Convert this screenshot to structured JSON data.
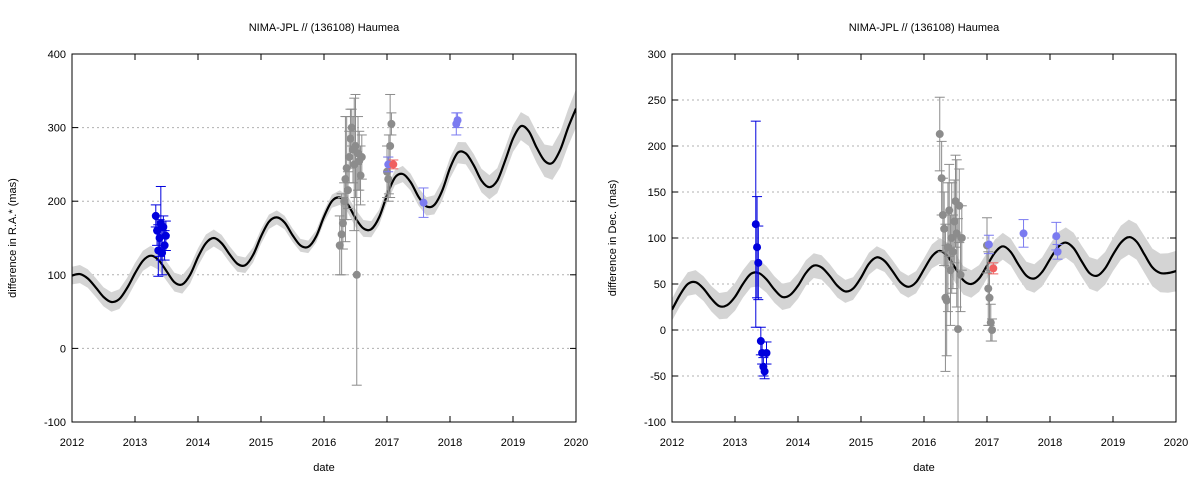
{
  "chart_data": [
    {
      "type": "line",
      "title": "NIMA-JPL // (136108) Haumea",
      "xlabel": "date",
      "ylabel": "difference in R.A.* (mas)",
      "xlim": [
        2012,
        2020
      ],
      "ylim": [
        -100,
        400
      ],
      "xticks": [
        "2012",
        "2013",
        "2014",
        "2015",
        "2016",
        "2017",
        "2018",
        "2019",
        "2020"
      ],
      "yticks": [
        "-100",
        "0",
        "100",
        "200",
        "300",
        "400"
      ],
      "grid": "dotted horizontal",
      "colors": {
        "model": "#000000",
        "band": "#d4d4d4",
        "blue": "#0000dd",
        "gray": "#8c8c8c",
        "light_blue": "#7b7bf0",
        "red": "#f06060"
      },
      "model": [
        [
          2012.0,
          99
        ],
        [
          2012.125,
          101
        ],
        [
          2012.25,
          95
        ],
        [
          2012.375,
          83
        ],
        [
          2012.5,
          70
        ],
        [
          2012.625,
          63
        ],
        [
          2012.75,
          67
        ],
        [
          2012.875,
          82
        ],
        [
          2013.0,
          102
        ],
        [
          2013.125,
          119
        ],
        [
          2013.25,
          126
        ],
        [
          2013.375,
          120
        ],
        [
          2013.5,
          105
        ],
        [
          2013.625,
          90
        ],
        [
          2013.75,
          87
        ],
        [
          2013.875,
          100
        ],
        [
          2014.0,
          124
        ],
        [
          2014.125,
          143
        ],
        [
          2014.25,
          150
        ],
        [
          2014.375,
          143
        ],
        [
          2014.5,
          128
        ],
        [
          2014.625,
          115
        ],
        [
          2014.75,
          113
        ],
        [
          2014.875,
          127
        ],
        [
          2015.0,
          152
        ],
        [
          2015.125,
          172
        ],
        [
          2015.25,
          178
        ],
        [
          2015.375,
          171
        ],
        [
          2015.5,
          154
        ],
        [
          2015.625,
          140
        ],
        [
          2015.75,
          138
        ],
        [
          2015.875,
          152
        ],
        [
          2016.0,
          179
        ],
        [
          2016.125,
          200
        ],
        [
          2016.25,
          205
        ],
        [
          2016.375,
          196
        ],
        [
          2016.5,
          177
        ],
        [
          2016.625,
          163
        ],
        [
          2016.75,
          162
        ],
        [
          2016.875,
          178
        ],
        [
          2017.0,
          208
        ],
        [
          2017.125,
          232
        ],
        [
          2017.25,
          237
        ],
        [
          2017.375,
          226
        ],
        [
          2017.5,
          206
        ],
        [
          2017.625,
          193
        ],
        [
          2017.75,
          195
        ],
        [
          2017.875,
          214
        ],
        [
          2018.0,
          245
        ],
        [
          2018.125,
          266
        ],
        [
          2018.25,
          265
        ],
        [
          2018.375,
          249
        ],
        [
          2018.5,
          228
        ],
        [
          2018.625,
          219
        ],
        [
          2018.75,
          228
        ],
        [
          2018.875,
          255
        ],
        [
          2019.0,
          285
        ],
        [
          2019.125,
          302
        ],
        [
          2019.25,
          295
        ],
        [
          2019.375,
          273
        ],
        [
          2019.5,
          255
        ],
        [
          2019.625,
          252
        ],
        [
          2019.75,
          270
        ],
        [
          2019.875,
          300
        ],
        [
          2020.0,
          326
        ]
      ],
      "band_halfwidth": [
        [
          2012,
          12
        ],
        [
          2013,
          14
        ],
        [
          2014,
          12
        ],
        [
          2015,
          10
        ],
        [
          2016,
          8
        ],
        [
          2016.5,
          12
        ],
        [
          2017,
          10
        ],
        [
          2018,
          14
        ],
        [
          2019,
          18
        ],
        [
          2020,
          26
        ]
      ],
      "points": [
        {
          "group": "blue",
          "values": [
            [
              2013.33,
              180,
              15
            ],
            [
              2013.35,
              160,
              20
            ],
            [
              2013.37,
              133,
              35
            ],
            [
              2013.39,
              150,
              25
            ],
            [
              2013.41,
              170,
              50
            ],
            [
              2013.43,
              130,
              30
            ],
            [
              2013.45,
              165,
              15
            ],
            [
              2013.47,
              140,
              20
            ],
            [
              2013.49,
              153,
              20
            ]
          ]
        },
        {
          "group": "gray",
          "values": [
            [
              2016.25,
              140,
              40
            ],
            [
              2016.28,
              155,
              55
            ],
            [
              2016.3,
              170,
              35
            ],
            [
              2016.32,
              200,
              25
            ],
            [
              2016.34,
              230,
              85
            ],
            [
              2016.36,
              245,
              70
            ],
            [
              2016.38,
              215,
              25
            ],
            [
              2016.4,
              260,
              35
            ],
            [
              2016.42,
              285,
              40
            ],
            [
              2016.44,
              300,
              25
            ],
            [
              2016.46,
              270,
              45
            ],
            [
              2016.48,
              250,
              90
            ],
            [
              2016.5,
              275,
              70
            ],
            [
              2016.52,
              100,
              150
            ],
            [
              2016.54,
              265,
              50
            ],
            [
              2016.56,
              255,
              40
            ],
            [
              2016.58,
              235,
              40
            ],
            [
              2016.6,
              260,
              30
            ],
            [
              2017.0,
              240,
              35
            ],
            [
              2017.03,
              250,
              40
            ],
            [
              2017.05,
              275,
              70
            ],
            [
              2017.07,
              305,
              15
            ],
            [
              2017.02,
              230,
              30
            ]
          ]
        },
        {
          "group": "light_blue",
          "values": [
            [
              2017.02,
              250,
              10
            ],
            [
              2017.58,
              198,
              20
            ],
            [
              2018.1,
              305,
              15
            ],
            [
              2018.12,
              310,
              10
            ]
          ]
        },
        {
          "group": "red",
          "values": [
            [
              2017.1,
              250,
              6
            ]
          ]
        }
      ]
    },
    {
      "type": "line",
      "title": "NIMA-JPL // (136108) Haumea",
      "xlabel": "date",
      "ylabel": "difference in Dec. (mas)",
      "xlim": [
        2012,
        2020
      ],
      "ylim": [
        -100,
        300
      ],
      "xticks": [
        "2012",
        "2013",
        "2014",
        "2015",
        "2016",
        "2017",
        "2018",
        "2019",
        "2020"
      ],
      "yticks": [
        "-100",
        "-50",
        "0",
        "50",
        "100",
        "150",
        "200",
        "250",
        "300"
      ],
      "grid": "dotted horizontal",
      "colors": {
        "model": "#000000",
        "band": "#d4d4d4",
        "blue": "#0000dd",
        "gray": "#8c8c8c",
        "light_blue": "#7b7bf0",
        "red": "#f06060"
      },
      "model": [
        [
          2012.0,
          22
        ],
        [
          2012.125,
          38
        ],
        [
          2012.25,
          50
        ],
        [
          2012.375,
          52
        ],
        [
          2012.5,
          45
        ],
        [
          2012.625,
          34
        ],
        [
          2012.75,
          26
        ],
        [
          2012.875,
          27
        ],
        [
          2013.0,
          36
        ],
        [
          2013.125,
          50
        ],
        [
          2013.25,
          61
        ],
        [
          2013.375,
          62
        ],
        [
          2013.5,
          55
        ],
        [
          2013.625,
          44
        ],
        [
          2013.75,
          36
        ],
        [
          2013.875,
          38
        ],
        [
          2014.0,
          48
        ],
        [
          2014.125,
          62
        ],
        [
          2014.25,
          70
        ],
        [
          2014.375,
          68
        ],
        [
          2014.5,
          59
        ],
        [
          2014.625,
          48
        ],
        [
          2014.75,
          42
        ],
        [
          2014.875,
          45
        ],
        [
          2015.0,
          57
        ],
        [
          2015.125,
          72
        ],
        [
          2015.25,
          79
        ],
        [
          2015.375,
          75
        ],
        [
          2015.5,
          64
        ],
        [
          2015.625,
          52
        ],
        [
          2015.75,
          47
        ],
        [
          2015.875,
          52
        ],
        [
          2016.0,
          66
        ],
        [
          2016.125,
          80
        ],
        [
          2016.25,
          86
        ],
        [
          2016.375,
          80
        ],
        [
          2016.5,
          67
        ],
        [
          2016.625,
          54
        ],
        [
          2016.75,
          50
        ],
        [
          2016.875,
          56
        ],
        [
          2017.0,
          70
        ],
        [
          2017.125,
          84
        ],
        [
          2017.25,
          91
        ],
        [
          2017.375,
          85
        ],
        [
          2017.5,
          71
        ],
        [
          2017.625,
          59
        ],
        [
          2017.75,
          56
        ],
        [
          2017.875,
          63
        ],
        [
          2018.0,
          77
        ],
        [
          2018.125,
          90
        ],
        [
          2018.25,
          95
        ],
        [
          2018.375,
          89
        ],
        [
          2018.5,
          75
        ],
        [
          2018.625,
          62
        ],
        [
          2018.75,
          59
        ],
        [
          2018.875,
          67
        ],
        [
          2019.0,
          82
        ],
        [
          2019.125,
          95
        ],
        [
          2019.25,
          101
        ],
        [
          2019.375,
          96
        ],
        [
          2019.5,
          82
        ],
        [
          2019.625,
          68
        ],
        [
          2019.75,
          62
        ],
        [
          2019.875,
          62
        ],
        [
          2020.0,
          64
        ]
      ],
      "band_halfwidth": [
        [
          2012,
          12
        ],
        [
          2013,
          15
        ],
        [
          2014,
          14
        ],
        [
          2015,
          12
        ],
        [
          2016,
          12
        ],
        [
          2016.5,
          16
        ],
        [
          2017,
          14
        ],
        [
          2018,
          16
        ],
        [
          2019,
          18
        ],
        [
          2020,
          22
        ]
      ],
      "points": [
        {
          "group": "blue",
          "values": [
            [
              2013.33,
              115,
              112
            ],
            [
              2013.35,
              90,
              55
            ],
            [
              2013.37,
              73,
              40
            ],
            [
              2013.41,
              -12,
              15
            ],
            [
              2013.43,
              -25,
              12
            ],
            [
              2013.45,
              -40,
              10
            ],
            [
              2013.47,
              -45,
              8
            ],
            [
              2013.5,
              -25,
              12
            ]
          ]
        },
        {
          "group": "gray",
          "values": [
            [
              2016.25,
              213,
              40
            ],
            [
              2016.28,
              165,
              40
            ],
            [
              2016.3,
              125,
              40
            ],
            [
              2016.32,
              110,
              40
            ],
            [
              2016.34,
              35,
              80
            ],
            [
              2016.36,
              32,
              60
            ],
            [
              2016.38,
              90,
              70
            ],
            [
              2016.4,
              130,
              50
            ],
            [
              2016.42,
              65,
              60
            ],
            [
              2016.44,
              100,
              60
            ],
            [
              2016.46,
              85,
              40
            ],
            [
              2016.48,
              118,
              45
            ],
            [
              2016.5,
              140,
              50
            ],
            [
              2016.52,
              105,
              80
            ],
            [
              2016.54,
              1,
              120
            ],
            [
              2016.56,
              135,
              40
            ],
            [
              2016.58,
              60,
              40
            ],
            [
              2016.6,
              100,
              35
            ],
            [
              2017.0,
              92,
              30
            ],
            [
              2017.02,
              45,
              40
            ],
            [
              2017.04,
              35,
              30
            ],
            [
              2017.06,
              8,
              20
            ],
            [
              2017.08,
              0,
              12
            ]
          ]
        },
        {
          "group": "light_blue",
          "values": [
            [
              2017.03,
              93,
              10
            ],
            [
              2017.58,
              105,
              15
            ],
            [
              2018.1,
              102,
              15
            ],
            [
              2018.12,
              85,
              8
            ]
          ]
        },
        {
          "group": "red",
          "values": [
            [
              2017.1,
              67,
              6
            ]
          ]
        }
      ]
    }
  ]
}
